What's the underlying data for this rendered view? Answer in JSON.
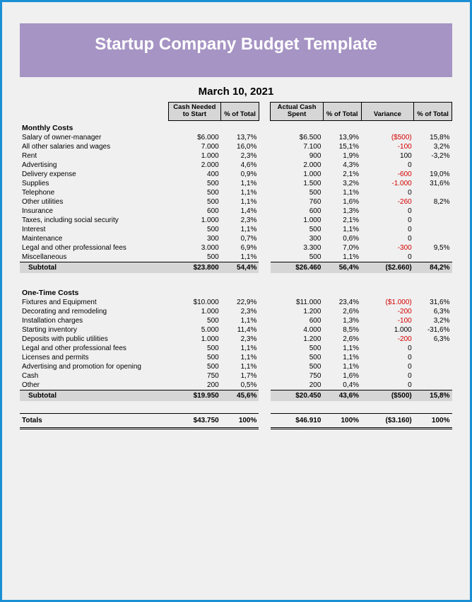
{
  "title": "Startup Company Budget Template",
  "date": "March 10, 2021",
  "colors": {
    "border": "#1a8fd4",
    "banner_bg": "#a694c4",
    "banner_text": "#ffffff",
    "page_bg": "#f0f0f0",
    "header_cell_bg": "#d6d6d6",
    "negative": "#d40000"
  },
  "headers": {
    "cash_needed": "Cash Needed to Start",
    "pct_total": "% of Total",
    "actual_spent": "Actual Cash Spent",
    "variance": "Variance"
  },
  "sections": {
    "monthly": {
      "title": "Monthly Costs",
      "rows": [
        {
          "label": "Salary of owner-manager",
          "cash": "$6.000",
          "cash_pct": "13,7%",
          "actual": "$6.500",
          "actual_pct": "13,9%",
          "var": "($500)",
          "var_neg": true,
          "var_pct": "15,8%"
        },
        {
          "label": "All other salaries and wages",
          "cash": "7.000",
          "cash_pct": "16,0%",
          "actual": "7.100",
          "actual_pct": "15,1%",
          "var": "-100",
          "var_neg": true,
          "var_pct": "3,2%"
        },
        {
          "label": "Rent",
          "cash": "1.000",
          "cash_pct": "2,3%",
          "actual": "900",
          "actual_pct": "1,9%",
          "var": "100",
          "var_neg": false,
          "var_pct": "-3,2%"
        },
        {
          "label": "Advertising",
          "cash": "2.000",
          "cash_pct": "4,6%",
          "actual": "2.000",
          "actual_pct": "4,3%",
          "var": "0",
          "var_neg": false,
          "var_pct": ""
        },
        {
          "label": "Delivery expense",
          "cash": "400",
          "cash_pct": "0,9%",
          "actual": "1.000",
          "actual_pct": "2,1%",
          "var": "-600",
          "var_neg": true,
          "var_pct": "19,0%"
        },
        {
          "label": "Supplies",
          "cash": "500",
          "cash_pct": "1,1%",
          "actual": "1.500",
          "actual_pct": "3,2%",
          "var": "-1.000",
          "var_neg": true,
          "var_pct": "31,6%"
        },
        {
          "label": "Telephone",
          "cash": "500",
          "cash_pct": "1,1%",
          "actual": "500",
          "actual_pct": "1,1%",
          "var": "0",
          "var_neg": false,
          "var_pct": ""
        },
        {
          "label": "Other utilities",
          "cash": "500",
          "cash_pct": "1,1%",
          "actual": "760",
          "actual_pct": "1,6%",
          "var": "-260",
          "var_neg": true,
          "var_pct": "8,2%"
        },
        {
          "label": "Insurance",
          "cash": "600",
          "cash_pct": "1,4%",
          "actual": "600",
          "actual_pct": "1,3%",
          "var": "0",
          "var_neg": false,
          "var_pct": ""
        },
        {
          "label": "Taxes, including social security",
          "cash": "1.000",
          "cash_pct": "2,3%",
          "actual": "1.000",
          "actual_pct": "2,1%",
          "var": "0",
          "var_neg": false,
          "var_pct": ""
        },
        {
          "label": "Interest",
          "cash": "500",
          "cash_pct": "1,1%",
          "actual": "500",
          "actual_pct": "1,1%",
          "var": "0",
          "var_neg": false,
          "var_pct": ""
        },
        {
          "label": "Maintenance",
          "cash": "300",
          "cash_pct": "0,7%",
          "actual": "300",
          "actual_pct": "0,6%",
          "var": "0",
          "var_neg": false,
          "var_pct": ""
        },
        {
          "label": "Legal and other professional fees",
          "cash": "3.000",
          "cash_pct": "6,9%",
          "actual": "3.300",
          "actual_pct": "7,0%",
          "var": "-300",
          "var_neg": true,
          "var_pct": "9,5%"
        },
        {
          "label": "Miscellaneous",
          "cash": "500",
          "cash_pct": "1,1%",
          "actual": "500",
          "actual_pct": "1,1%",
          "var": "0",
          "var_neg": false,
          "var_pct": ""
        }
      ],
      "subtotal": {
        "label": "Subtotal",
        "cash": "$23.800",
        "cash_pct": "54,4%",
        "actual": "$26.460",
        "actual_pct": "56,4%",
        "var": "($2.660)",
        "var_pct": "84,2%"
      }
    },
    "onetime": {
      "title": "One-Time Costs",
      "rows": [
        {
          "label": "Fixtures and Equipment",
          "cash": "$10.000",
          "cash_pct": "22,9%",
          "actual": "$11.000",
          "actual_pct": "23,4%",
          "var": "($1.000)",
          "var_neg": true,
          "var_pct": "31,6%"
        },
        {
          "label": "Decorating and remodeling",
          "cash": "1.000",
          "cash_pct": "2,3%",
          "actual": "1.200",
          "actual_pct": "2,6%",
          "var": "-200",
          "var_neg": true,
          "var_pct": "6,3%"
        },
        {
          "label": "Installation charges",
          "cash": "500",
          "cash_pct": "1,1%",
          "actual": "600",
          "actual_pct": "1,3%",
          "var": "-100",
          "var_neg": true,
          "var_pct": "3,2%"
        },
        {
          "label": "Starting inventory",
          "cash": "5.000",
          "cash_pct": "11,4%",
          "actual": "4.000",
          "actual_pct": "8,5%",
          "var": "1.000",
          "var_neg": false,
          "var_pct": "-31,6%"
        },
        {
          "label": "Deposits with public utilities",
          "cash": "1.000",
          "cash_pct": "2,3%",
          "actual": "1.200",
          "actual_pct": "2,6%",
          "var": "-200",
          "var_neg": true,
          "var_pct": "6,3%"
        },
        {
          "label": "Legal and other professional fees",
          "cash": "500",
          "cash_pct": "1,1%",
          "actual": "500",
          "actual_pct": "1,1%",
          "var": "0",
          "var_neg": false,
          "var_pct": ""
        },
        {
          "label": "Licenses and permits",
          "cash": "500",
          "cash_pct": "1,1%",
          "actual": "500",
          "actual_pct": "1,1%",
          "var": "0",
          "var_neg": false,
          "var_pct": ""
        },
        {
          "label": "Advertising and promotion for opening",
          "cash": "500",
          "cash_pct": "1,1%",
          "actual": "500",
          "actual_pct": "1,1%",
          "var": "0",
          "var_neg": false,
          "var_pct": ""
        },
        {
          "label": "Cash",
          "cash": "750",
          "cash_pct": "1,7%",
          "actual": "750",
          "actual_pct": "1,6%",
          "var": "0",
          "var_neg": false,
          "var_pct": ""
        },
        {
          "label": "Other",
          "cash": "200",
          "cash_pct": "0,5%",
          "actual": "200",
          "actual_pct": "0,4%",
          "var": "0",
          "var_neg": false,
          "var_pct": ""
        }
      ],
      "subtotal": {
        "label": "Subtotal",
        "cash": "$19.950",
        "cash_pct": "45,6%",
        "actual": "$20.450",
        "actual_pct": "43,6%",
        "var": "($500)",
        "var_pct": "15,8%"
      }
    }
  },
  "totals": {
    "label": "Totals",
    "cash": "$43.750",
    "cash_pct": "100%",
    "actual": "$46.910",
    "actual_pct": "100%",
    "var": "($3.160)",
    "var_pct": "100%"
  }
}
